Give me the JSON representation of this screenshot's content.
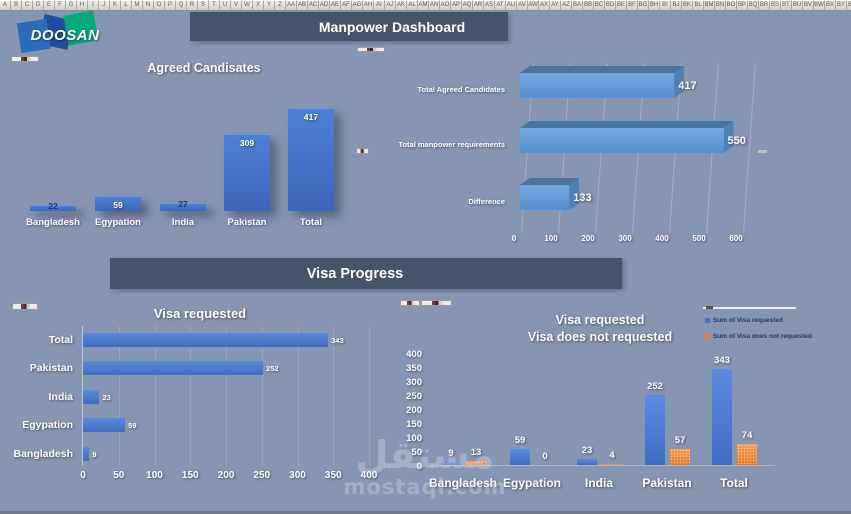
{
  "excel_columns": [
    "A",
    "B",
    "C",
    "D",
    "E",
    "F",
    "G",
    "H",
    "I",
    "J",
    "K",
    "L",
    "M",
    "N",
    "O",
    "P",
    "Q",
    "R",
    "S",
    "T",
    "U",
    "V",
    "W",
    "X",
    "Y",
    "Z",
    "AA",
    "AB",
    "AC",
    "AD",
    "AE",
    "AF",
    "AG",
    "AH",
    "AI",
    "AJ",
    "AK",
    "AL",
    "AM",
    "AN",
    "AO",
    "AP",
    "AQ",
    "AR",
    "AS",
    "AT",
    "AU",
    "AV",
    "AW",
    "AX",
    "AY",
    "AZ",
    "BA",
    "BB",
    "BC",
    "BD",
    "BE",
    "BF",
    "BG",
    "BH",
    "BI",
    "BJ",
    "BK",
    "BL",
    "BM",
    "BN",
    "BO",
    "BP",
    "BQ",
    "BR",
    "BS",
    "BT",
    "BU",
    "BV",
    "BW",
    "BX",
    "BY",
    "BZ"
  ],
  "logo": {
    "text": "DOOSAN"
  },
  "banners": {
    "main": "Manpower Dashboard",
    "visa": "Visa Progress"
  },
  "watermark": {
    "arabic": "مستقل",
    "latin": "mostaql.com"
  },
  "colors": {
    "background": "#8695B1",
    "banner": "#44546A",
    "bar_blue": "#4472C4",
    "bar_light_blue": "#5B9BD5",
    "bar_orange": "#ED7D31",
    "dark_label": "#1F3864"
  },
  "chart_data": [
    {
      "id": "agreed-candidates",
      "type": "bar",
      "title": "Agreed Candisates",
      "categories": [
        "Bangladesh",
        "Egypation",
        "India",
        "Pakistan",
        "Total"
      ],
      "values": [
        22,
        59,
        27,
        309,
        417
      ],
      "ylim": [
        0,
        450
      ],
      "grid": false,
      "legend": "none"
    },
    {
      "id": "manpower-requirements",
      "type": "bar-horizontal-3d",
      "title": "",
      "categories": [
        "Total Agreed Candidates",
        "Total manpower requirements",
        "Difference"
      ],
      "values": [
        417,
        550,
        133
      ],
      "xticks": [
        0,
        100,
        200,
        300,
        400,
        500,
        600
      ],
      "xlim": [
        0,
        650
      ],
      "grid": true,
      "legend": "none"
    },
    {
      "id": "visa-requested",
      "type": "bar-horizontal",
      "title": "Visa requested",
      "categories": [
        "Total",
        "Pakistan",
        "India",
        "Egypation",
        "Bangladesh"
      ],
      "values": [
        343,
        252,
        23,
        59,
        9
      ],
      "xticks": [
        0,
        50,
        100,
        150,
        200,
        250,
        300,
        350,
        400
      ],
      "xlim": [
        0,
        400
      ],
      "grid": true,
      "legend": "none"
    },
    {
      "id": "visa-comparison",
      "type": "bar",
      "title_lines": [
        "Visa requested",
        "Visa does not requested"
      ],
      "categories": [
        "Bangladesh",
        "Egypation",
        "India",
        "Pakistan",
        "Total"
      ],
      "series": [
        {
          "name": "Sum of Visa requested",
          "color": "#4472C4",
          "values": [
            9,
            59,
            23,
            252,
            343
          ]
        },
        {
          "name": "Sum of Visa does not requested",
          "color": "#ED7D31",
          "values": [
            13,
            0,
            4,
            57,
            74
          ]
        }
      ],
      "yticks": [
        0,
        50,
        100,
        150,
        200,
        250,
        300,
        350,
        400
      ],
      "ylim": [
        0,
        400
      ],
      "grid": false,
      "legend": "top-right"
    }
  ]
}
